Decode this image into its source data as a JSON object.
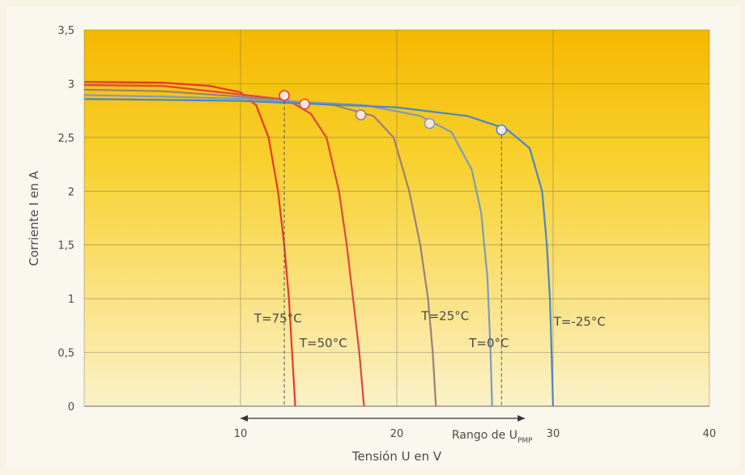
{
  "chart_data": {
    "type": "line",
    "xlabel": "Tensión U en V",
    "ylabel": "Corriente I en A",
    "xlim": [
      0,
      40
    ],
    "ylim": [
      0,
      3.5
    ],
    "x_ticks": [
      "10",
      "20",
      "30",
      "40"
    ],
    "x_tick_values": [
      10,
      20,
      30,
      40
    ],
    "y_ticks": [
      "0",
      "0,5",
      "1",
      "1,5",
      "2",
      "2,5",
      "3",
      "3,5"
    ],
    "y_tick_values": [
      0,
      0.5,
      1,
      1.5,
      2,
      2.5,
      3,
      3.5
    ],
    "grid": true,
    "series": [
      {
        "name": "T=75°C",
        "color": "#e8392b",
        "points": [
          [
            -2,
            3.02
          ],
          [
            5,
            3.01
          ],
          [
            8,
            2.98
          ],
          [
            10,
            2.92
          ],
          [
            11,
            2.8
          ],
          [
            11.8,
            2.5
          ],
          [
            12.4,
            2.0
          ],
          [
            12.8,
            1.5
          ],
          [
            13.1,
            1.0
          ],
          [
            13.3,
            0.5
          ],
          [
            13.5,
            0
          ]
        ],
        "mpp": [
          12.8,
          2.89
        ]
      },
      {
        "name": "T=50°C",
        "color": "#e0473d",
        "points": [
          [
            -2,
            2.99
          ],
          [
            5,
            2.98
          ],
          [
            10,
            2.9
          ],
          [
            13,
            2.85
          ],
          [
            14.5,
            2.72
          ],
          [
            15.5,
            2.5
          ],
          [
            16.3,
            2.0
          ],
          [
            16.8,
            1.5
          ],
          [
            17.2,
            1.0
          ],
          [
            17.6,
            0.5
          ],
          [
            17.9,
            0
          ]
        ],
        "mpp": [
          14.1,
          2.81
        ]
      },
      {
        "name": "T=25°C",
        "color": "#9c7f7a",
        "points": [
          [
            -2,
            2.95
          ],
          [
            5,
            2.93
          ],
          [
            10,
            2.88
          ],
          [
            16,
            2.8
          ],
          [
            18.5,
            2.7
          ],
          [
            19.8,
            2.5
          ],
          [
            20.8,
            2.0
          ],
          [
            21.5,
            1.5
          ],
          [
            22,
            1.0
          ],
          [
            22.3,
            0.5
          ],
          [
            22.5,
            0
          ]
        ],
        "mpp": [
          17.7,
          2.71
        ]
      },
      {
        "name": "T=0°C",
        "color": "#7e9cb8",
        "points": [
          [
            -2,
            2.9
          ],
          [
            5,
            2.88
          ],
          [
            10,
            2.86
          ],
          [
            18,
            2.8
          ],
          [
            21.5,
            2.7
          ],
          [
            23.5,
            2.55
          ],
          [
            24.8,
            2.2
          ],
          [
            25.4,
            1.8
          ],
          [
            25.8,
            1.2
          ],
          [
            26,
            0.5
          ],
          [
            26.1,
            0
          ]
        ],
        "mpp": [
          22.1,
          2.63
        ]
      },
      {
        "name": "T=-25°C",
        "color": "#4a86c8",
        "points": [
          [
            -2,
            2.86
          ],
          [
            5,
            2.85
          ],
          [
            10,
            2.84
          ],
          [
            20,
            2.78
          ],
          [
            24.5,
            2.7
          ],
          [
            27,
            2.58
          ],
          [
            28.5,
            2.4
          ],
          [
            29.3,
            2.0
          ],
          [
            29.6,
            1.5
          ],
          [
            29.8,
            1.0
          ],
          [
            29.9,
            0.5
          ],
          [
            30,
            0
          ]
        ],
        "mpp": [
          26.7,
          2.57
        ]
      }
    ],
    "range_annotation": {
      "label": "Rango de U",
      "label_sub": "PMP",
      "from": 10,
      "to": 28.2
    }
  },
  "colors": {
    "plot_top": "#f5b800",
    "plot_bottom": "#fbf1c9",
    "frame": "#faf8ee",
    "grid": "#6e6451",
    "text": "#4a4a4a"
  }
}
